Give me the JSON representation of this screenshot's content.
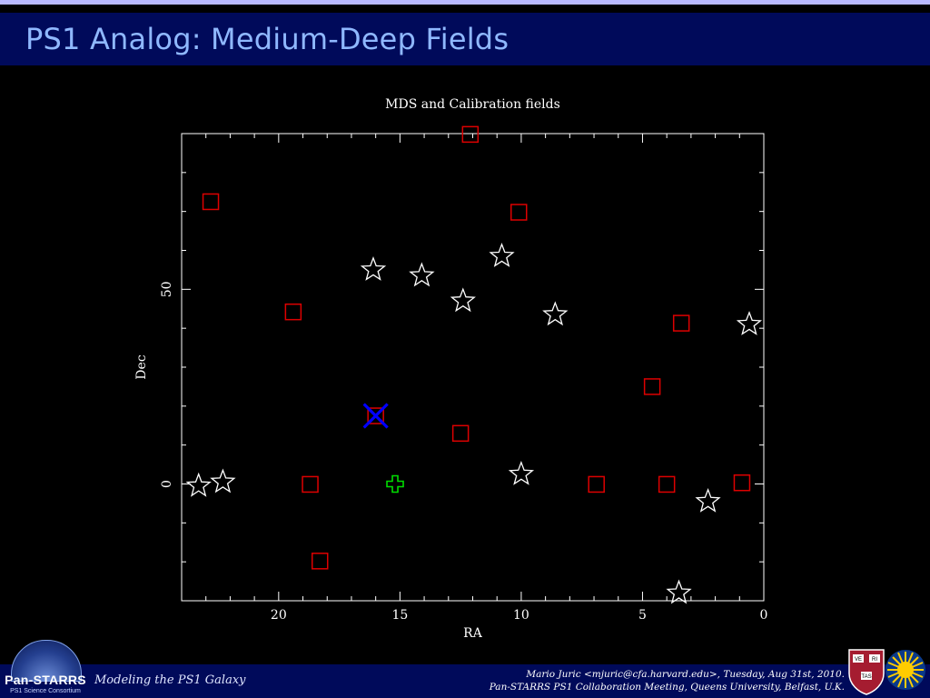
{
  "slide": {
    "title": "PS1 Analog: Medium-Deep Fields",
    "footer_left": "Modeling the PS1 Galaxy",
    "footer_right_line1": "Mario Juric <mjuric@cfa.harvard.edu>, Tuesday, Aug 31st, 2010.",
    "footer_right_line2": "Pan-STARRS PS1 Collaboration Meeting, Queens University, Belfast, U.K.",
    "logo_text": "Pan-STARRS",
    "logo_subtext": "PS1 Science Consortium",
    "harvard_letters": [
      "VE",
      "RI",
      "TAS"
    ]
  },
  "chart_data": {
    "type": "scatter",
    "title": "MDS and Calibration fields",
    "xlabel": "RA",
    "ylabel": "Dec",
    "xlim": [
      24,
      0
    ],
    "ylim": [
      -30,
      90
    ],
    "xticks": [
      20,
      15,
      10,
      5,
      0
    ],
    "yticks": [
      0,
      50
    ],
    "grid": false,
    "colors": {
      "squares": "#dd0000",
      "stars": "#ffffff",
      "cross": "#00dd00",
      "x_marker": "#0000ff"
    },
    "series": [
      {
        "marker": "square",
        "color": "#dd0000",
        "points": [
          [
            22.8,
            72.5
          ],
          [
            12.1,
            89.8
          ],
          [
            10.1,
            69.8
          ],
          [
            19.4,
            44.2
          ],
          [
            3.4,
            41.3
          ],
          [
            4.6,
            25.0
          ],
          [
            16.0,
            17.5
          ],
          [
            12.5,
            13.0
          ],
          [
            18.7,
            -0.1
          ],
          [
            6.9,
            -0.1
          ],
          [
            4.0,
            -0.1
          ],
          [
            0.9,
            0.3
          ],
          [
            18.3,
            -19.8
          ]
        ]
      },
      {
        "marker": "star",
        "color": "#ffffff",
        "points": [
          [
            16.1,
            55.0
          ],
          [
            14.1,
            53.5
          ],
          [
            10.8,
            58.5
          ],
          [
            12.4,
            47.0
          ],
          [
            8.6,
            43.5
          ],
          [
            0.6,
            41.0
          ],
          [
            10.0,
            2.5
          ],
          [
            23.3,
            -0.5
          ],
          [
            22.3,
            0.5
          ],
          [
            2.3,
            -4.5
          ],
          [
            3.5,
            -28.0
          ]
        ]
      },
      {
        "marker": "cross",
        "color": "#00dd00",
        "points": [
          [
            15.2,
            0.0
          ]
        ]
      },
      {
        "marker": "x",
        "color": "#0000ff",
        "points": [
          [
            16.0,
            17.5
          ]
        ]
      }
    ]
  }
}
